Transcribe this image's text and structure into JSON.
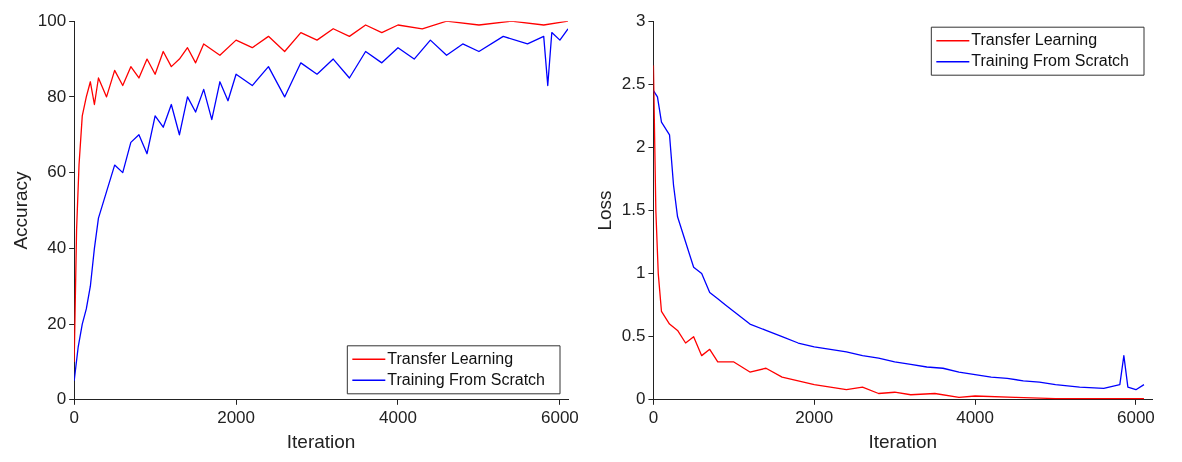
{
  "chart_data": [
    {
      "type": "line",
      "xlabel": "Iteration",
      "ylabel": "Accuracy",
      "xlim": [
        0,
        6100
      ],
      "xticks": [
        0,
        2000,
        4000,
        6000
      ],
      "ylim": [
        0,
        100
      ],
      "yticks": [
        0,
        20,
        40,
        60,
        80,
        100
      ],
      "grid": false,
      "legend": "bottom right",
      "series": [
        {
          "name": "Transfer Learning",
          "color": "#ff0000",
          "x": [
            0,
            30,
            60,
            100,
            150,
            200,
            250,
            300,
            400,
            500,
            600,
            700,
            800,
            900,
            1000,
            1100,
            1200,
            1300,
            1400,
            1500,
            1600,
            1800,
            2000,
            2200,
            2400,
            2600,
            2800,
            3000,
            3200,
            3400,
            3600,
            3800,
            4000,
            4300,
            4600,
            5000,
            5400,
            5800,
            6100
          ],
          "values": [
            10,
            45,
            62,
            75,
            80,
            84,
            78,
            85,
            80,
            87,
            83,
            88,
            85,
            90,
            86,
            92,
            88,
            90,
            93,
            89,
            94,
            91,
            95,
            93,
            96,
            92,
            97,
            95,
            98,
            96,
            99,
            97,
            99,
            98,
            100,
            99,
            100,
            99,
            100
          ]
        },
        {
          "name": "Training From Scratch",
          "color": "#0000ff",
          "x": [
            0,
            50,
            100,
            150,
            200,
            250,
            300,
            400,
            500,
            600,
            700,
            800,
            900,
            1000,
            1100,
            1200,
            1300,
            1400,
            1500,
            1600,
            1700,
            1800,
            1900,
            2000,
            2200,
            2400,
            2600,
            2800,
            3000,
            3200,
            3400,
            3600,
            3800,
            4000,
            4200,
            4400,
            4600,
            4800,
            5000,
            5300,
            5600,
            5800,
            5850,
            5900,
            6000,
            6100
          ],
          "values": [
            5,
            14,
            20,
            24,
            30,
            40,
            48,
            55,
            62,
            60,
            68,
            70,
            65,
            75,
            72,
            78,
            70,
            80,
            76,
            82,
            74,
            84,
            79,
            86,
            83,
            88,
            80,
            89,
            86,
            90,
            85,
            92,
            89,
            93,
            90,
            95,
            91,
            94,
            92,
            96,
            94,
            96,
            83,
            97,
            95,
            98
          ]
        }
      ]
    },
    {
      "type": "line",
      "xlabel": "Iteration",
      "ylabel": "Loss",
      "xlim": [
        0,
        6200
      ],
      "xticks": [
        0,
        2000,
        4000,
        6000
      ],
      "ylim": [
        0,
        3
      ],
      "yticks": [
        0,
        0.5,
        1,
        1.5,
        2,
        2.5,
        3
      ],
      "grid": false,
      "legend": "top right",
      "series": [
        {
          "name": "Transfer Learning",
          "color": "#ff0000",
          "x": [
            0,
            30,
            60,
            100,
            200,
            300,
            400,
            500,
            600,
            700,
            800,
            1000,
            1200,
            1400,
            1600,
            1800,
            2000,
            2200,
            2400,
            2600,
            2800,
            3000,
            3200,
            3500,
            3800,
            4000,
            4500,
            5000,
            5500,
            6100
          ],
          "values": [
            2.65,
            1.5,
            1.0,
            0.7,
            0.6,
            0.55,
            0.45,
            0.5,
            0.35,
            0.4,
            0.3,
            0.3,
            0.22,
            0.25,
            0.18,
            0.15,
            0.12,
            0.1,
            0.08,
            0.1,
            0.05,
            0.06,
            0.04,
            0.05,
            0.02,
            0.03,
            0.02,
            0.01,
            0.01,
            0.01
          ]
        },
        {
          "name": "Training From Scratch",
          "color": "#0000ff",
          "x": [
            0,
            50,
            100,
            200,
            250,
            300,
            400,
            500,
            600,
            700,
            800,
            900,
            1000,
            1200,
            1400,
            1600,
            1800,
            2000,
            2200,
            2400,
            2600,
            2800,
            3000,
            3200,
            3400,
            3600,
            3800,
            4000,
            4200,
            4400,
            4600,
            4800,
            5000,
            5300,
            5600,
            5800,
            5850,
            5900,
            6000,
            6100
          ],
          "values": [
            2.45,
            2.4,
            2.2,
            2.1,
            1.7,
            1.45,
            1.25,
            1.05,
            1.0,
            0.85,
            0.8,
            0.75,
            0.7,
            0.6,
            0.55,
            0.5,
            0.45,
            0.42,
            0.4,
            0.38,
            0.35,
            0.33,
            0.3,
            0.28,
            0.26,
            0.25,
            0.22,
            0.2,
            0.18,
            0.17,
            0.15,
            0.14,
            0.12,
            0.1,
            0.09,
            0.12,
            0.35,
            0.1,
            0.08,
            0.12
          ]
        }
      ]
    }
  ]
}
